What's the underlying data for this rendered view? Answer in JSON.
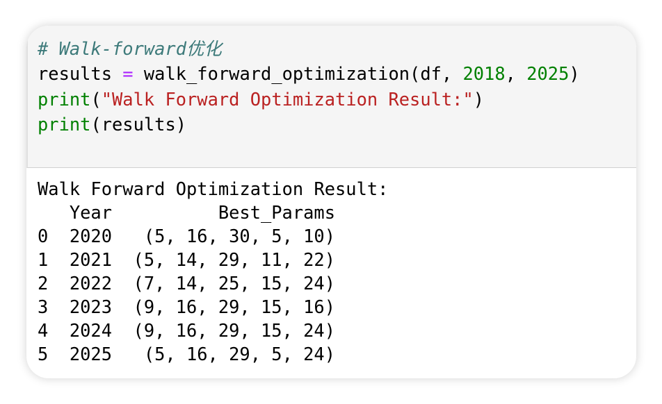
{
  "cell": {
    "code_lines": [
      [
        {
          "text": "# Walk-forward优化",
          "color": "#3d7a7a",
          "italic": true
        }
      ],
      [
        {
          "text": "results ",
          "color": "#000000"
        },
        {
          "text": "=",
          "color": "#aa22ff"
        },
        {
          "text": " walk_forward_optimization(df, ",
          "color": "#000000"
        },
        {
          "text": "2018",
          "color": "#008000"
        },
        {
          "text": ", ",
          "color": "#000000"
        },
        {
          "text": "2025",
          "color": "#008000"
        },
        {
          "text": ")",
          "color": "#000000"
        }
      ],
      [
        {
          "text": "print",
          "color": "#008000"
        },
        {
          "text": "(",
          "color": "#000000"
        },
        {
          "text": "\"Walk Forward Optimization Result:\"",
          "color": "#ba2121"
        },
        {
          "text": ")",
          "color": "#000000"
        }
      ],
      [
        {
          "text": "print",
          "color": "#008000"
        },
        {
          "text": "(results)",
          "color": "#000000"
        }
      ]
    ],
    "output": {
      "heading": "Walk Forward Optimization Result:",
      "columns": [
        "Year",
        "Best_Params"
      ],
      "rows": [
        [
          0,
          2020,
          "(5, 16, 30, 5, 10)"
        ],
        [
          1,
          2021,
          "(5, 14, 29, 11, 22)"
        ],
        [
          2,
          2022,
          "(7, 14, 25, 15, 24)"
        ],
        [
          3,
          2023,
          "(9, 16, 29, 15, 16)"
        ],
        [
          4,
          2024,
          "(9, 16, 29, 15, 24)"
        ],
        [
          5,
          2025,
          "(5, 16, 29, 5, 24)"
        ]
      ]
    }
  }
}
